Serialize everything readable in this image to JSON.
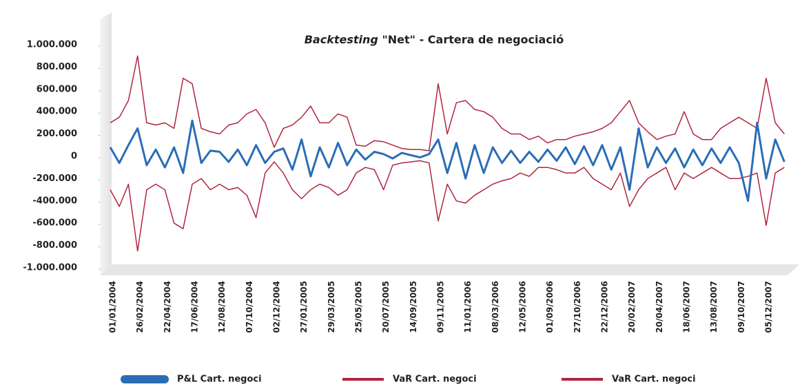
{
  "chart_data": {
    "type": "line",
    "title_italic": "Backtesting",
    "title_rest": "\"Net\" - Cartera de negociació",
    "categories": [
      "01/01/2004",
      null,
      null,
      "26/02/2004",
      null,
      null,
      "22/04/2004",
      null,
      null,
      "17/06/2004",
      null,
      null,
      "12/08/2004",
      null,
      null,
      "07/10/2004",
      null,
      null,
      "02/12/2004",
      null,
      null,
      "27/01/2005",
      null,
      null,
      "29/03/2005",
      null,
      null,
      "25/05/2005",
      null,
      null,
      "20/07/2005",
      null,
      null,
      "14/09/2005",
      null,
      null,
      "09/11/2005",
      null,
      null,
      "11/01/2006",
      null,
      null,
      "08/03/2006",
      null,
      null,
      "12/05/2006",
      null,
      null,
      "01/09/2006",
      null,
      null,
      "27/10/2006",
      null,
      null,
      "22/12/2006",
      null,
      null,
      "20/02/2007",
      null,
      null,
      "20/04/2007",
      null,
      null,
      "18/06/2007",
      null,
      null,
      "13/08/2007",
      null,
      null,
      "09/10/2007",
      null,
      null,
      "05/12/2007",
      null,
      null
    ],
    "series": [
      {
        "name": "P&L Cart. negoci",
        "color": "#2a6db5",
        "values": [
          80000,
          -60000,
          100000,
          250000,
          -80000,
          60000,
          -100000,
          80000,
          -150000,
          320000,
          -60000,
          50000,
          40000,
          -50000,
          60000,
          -80000,
          100000,
          -60000,
          40000,
          70000,
          -120000,
          150000,
          -180000,
          80000,
          -100000,
          120000,
          -80000,
          60000,
          -30000,
          40000,
          20000,
          -20000,
          30000,
          10000,
          -10000,
          20000,
          150000,
          -150000,
          120000,
          -200000,
          100000,
          -150000,
          80000,
          -60000,
          50000,
          -60000,
          40000,
          -50000,
          60000,
          -40000,
          80000,
          -70000,
          90000,
          -80000,
          100000,
          -120000,
          80000,
          -300000,
          250000,
          -100000,
          80000,
          -60000,
          70000,
          -100000,
          60000,
          -80000,
          70000,
          -60000,
          80000,
          -60000,
          -400000,
          300000,
          -200000,
          150000,
          -50000
        ]
      },
      {
        "name": "VaR Cart. negoci",
        "color": "#b0243e",
        "values": [
          300000,
          350000,
          500000,
          900000,
          300000,
          280000,
          300000,
          250000,
          700000,
          650000,
          250000,
          220000,
          200000,
          280000,
          300000,
          380000,
          420000,
          300000,
          80000,
          250000,
          280000,
          350000,
          450000,
          300000,
          300000,
          380000,
          350000,
          100000,
          90000,
          140000,
          130000,
          100000,
          70000,
          60000,
          60000,
          50000,
          650000,
          200000,
          480000,
          500000,
          420000,
          400000,
          350000,
          250000,
          200000,
          200000,
          150000,
          180000,
          120000,
          150000,
          150000,
          180000,
          200000,
          220000,
          250000,
          300000,
          400000,
          500000,
          300000,
          220000,
          150000,
          180000,
          200000,
          400000,
          200000,
          150000,
          150000,
          250000,
          300000,
          350000,
          300000,
          250000,
          700000,
          300000,
          200000
        ]
      },
      {
        "name": "VaR Cart. negoci",
        "color": "#b0243e",
        "values": [
          -300000,
          -450000,
          -250000,
          -850000,
          -300000,
          -250000,
          -300000,
          -600000,
          -650000,
          -250000,
          -200000,
          -300000,
          -250000,
          -300000,
          -280000,
          -350000,
          -550000,
          -150000,
          -50000,
          -150000,
          -300000,
          -380000,
          -300000,
          -250000,
          -280000,
          -350000,
          -300000,
          -150000,
          -100000,
          -120000,
          -300000,
          -80000,
          -60000,
          -50000,
          -40000,
          -60000,
          -580000,
          -250000,
          -400000,
          -420000,
          -350000,
          -300000,
          -250000,
          -220000,
          -200000,
          -150000,
          -180000,
          -100000,
          -100000,
          -120000,
          -150000,
          -150000,
          -100000,
          -200000,
          -250000,
          -300000,
          -150000,
          -450000,
          -300000,
          -200000,
          -150000,
          -100000,
          -300000,
          -150000,
          -200000,
          -150000,
          -100000,
          -150000,
          -200000,
          -200000,
          -180000,
          -150000,
          -620000,
          -150000,
          -100000
        ]
      }
    ],
    "ylim": [
      -1000000,
      1000000
    ],
    "yticks": [
      {
        "value": -1000000,
        "label": "-1.000.000"
      },
      {
        "value": -800000,
        "label": "-800.000"
      },
      {
        "value": -600000,
        "label": "-600.000"
      },
      {
        "value": -400000,
        "label": "-400.000"
      },
      {
        "value": -200000,
        "label": "-200.000"
      },
      0,
      {
        "value": 200000,
        "label": "200.000"
      },
      {
        "value": 400000,
        "label": "400.000"
      },
      {
        "value": 600000,
        "label": "600.000"
      },
      {
        "value": 800000,
        "label": "800.000"
      },
      {
        "value": 1000000,
        "label": "1.000.000"
      }
    ],
    "grid": false,
    "legend": "bottom"
  }
}
